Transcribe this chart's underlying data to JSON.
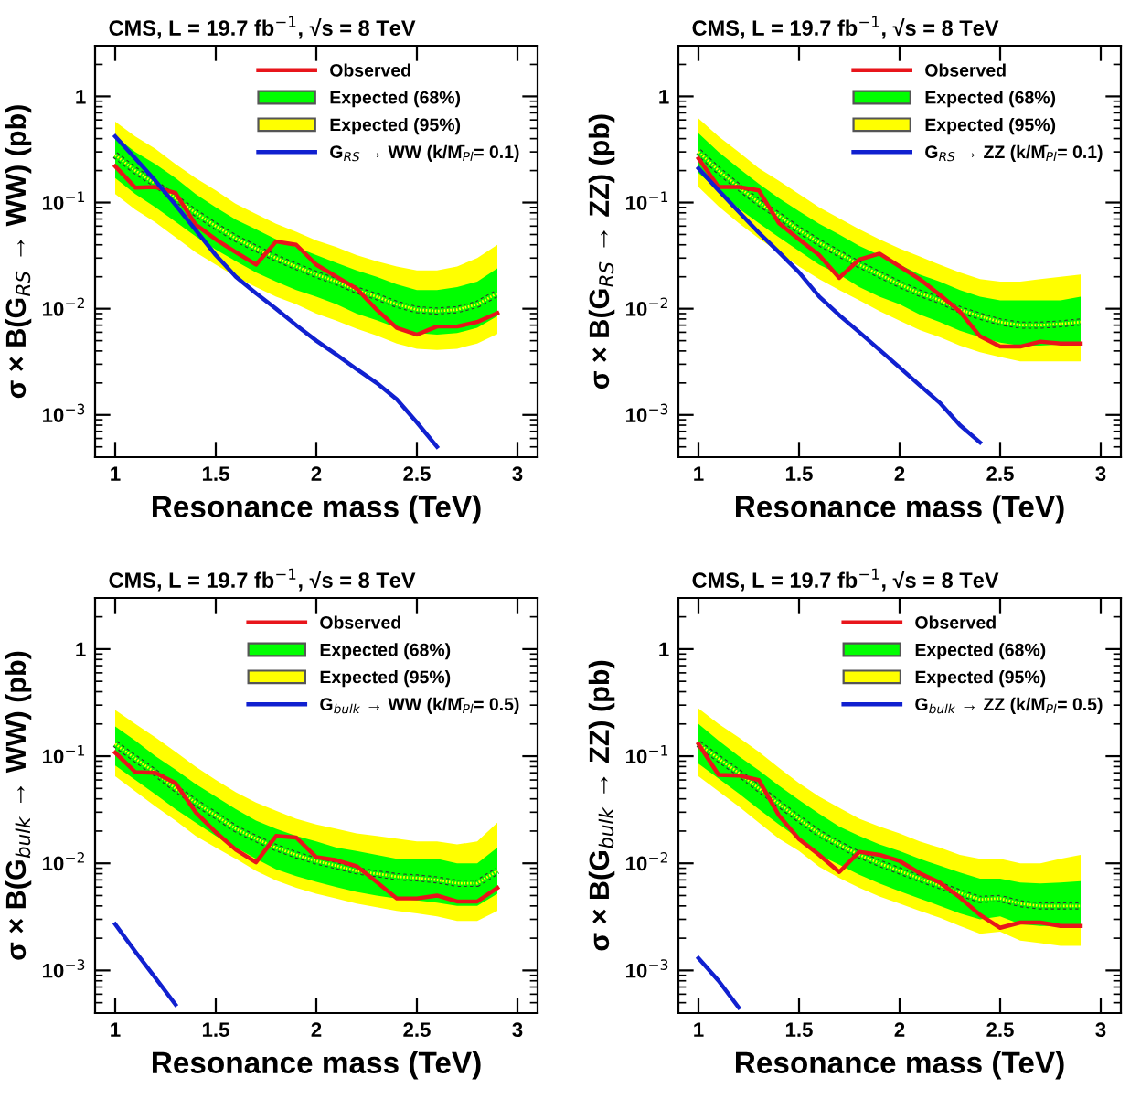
{
  "chart_data": [
    {
      "type": "line",
      "title": "CMS, L = 19.7 fb$^{−1}$, √s = 8 TeV",
      "xlabel": "Resonance mass (TeV)",
      "ylabel": "σ × B(G$_{RS}$ → WW) (pb)",
      "log": "y",
      "legend": "top right",
      "xlim": [
        0.9,
        3.1
      ],
      "xticks": [
        1,
        1.5,
        2,
        2.5,
        3
      ],
      "ylim": [
        0.0004,
        3
      ],
      "yticks": [
        {
          "value": 0.001,
          "label": "10$^{−3}$"
        },
        {
          "value": 0.01,
          "label": "10$^{−2}$"
        },
        {
          "value": 0.1,
          "label": "10$^{−1}$"
        },
        1
      ],
      "x": [
        1.0,
        1.1,
        1.2,
        1.3,
        1.4,
        1.5,
        1.6,
        1.7,
        1.8,
        1.9,
        2.0,
        2.1,
        2.2,
        2.3,
        2.4,
        2.5,
        2.6,
        2.7,
        2.8,
        2.9
      ],
      "series": [
        {
          "name": "Observed",
          "color": "#e8151b",
          "line_style": "solid",
          "values": [
            0.22,
            0.138,
            0.14,
            0.123,
            0.062,
            0.045,
            0.034,
            0.026,
            0.043,
            0.04,
            0.026,
            0.02,
            0.0155,
            0.0098,
            0.0066,
            0.0057,
            0.0068,
            0.0068,
            0.0075,
            0.0091
          ]
        },
        {
          "name": "Expected (68%)",
          "color": "#00ff00",
          "line_style": "dotted",
          "values": [
            0.28,
            0.2,
            0.15,
            0.11,
            0.08,
            0.06,
            0.046,
            0.037,
            0.03,
            0.025,
            0.021,
            0.018,
            0.015,
            0.013,
            0.011,
            0.0098,
            0.0095,
            0.0098,
            0.011,
            0.014
          ],
          "lower": [
            0.17,
            0.12,
            0.09,
            0.066,
            0.048,
            0.036,
            0.028,
            0.022,
            0.018,
            0.015,
            0.013,
            0.011,
            0.009,
            0.0078,
            0.0066,
            0.0059,
            0.0057,
            0.0059,
            0.0066,
            0.0085
          ],
          "upper": [
            0.42,
            0.3,
            0.23,
            0.17,
            0.12,
            0.09,
            0.069,
            0.056,
            0.045,
            0.038,
            0.032,
            0.027,
            0.023,
            0.02,
            0.017,
            0.015,
            0.015,
            0.016,
            0.018,
            0.024
          ]
        },
        {
          "name": "Expected (95%)",
          "color": "#ffff00",
          "line_style": "dotted",
          "values": [
            0.28,
            0.2,
            0.15,
            0.11,
            0.08,
            0.06,
            0.046,
            0.037,
            0.03,
            0.025,
            0.021,
            0.018,
            0.015,
            0.013,
            0.011,
            0.0098,
            0.0095,
            0.0098,
            0.011,
            0.014
          ],
          "lower": [
            0.12,
            0.086,
            0.065,
            0.047,
            0.034,
            0.026,
            0.02,
            0.016,
            0.013,
            0.011,
            0.009,
            0.0077,
            0.0065,
            0.0056,
            0.0047,
            0.0042,
            0.0041,
            0.0042,
            0.0047,
            0.0058
          ],
          "upper": [
            0.58,
            0.42,
            0.32,
            0.23,
            0.17,
            0.13,
            0.097,
            0.078,
            0.063,
            0.053,
            0.044,
            0.038,
            0.032,
            0.028,
            0.025,
            0.023,
            0.023,
            0.025,
            0.03,
            0.04
          ]
        },
        {
          "name": "G$_{RS}$ → WW (k/M̄$_{Pl}$= 0.1)",
          "color": "#1020d0",
          "line_style": "solid",
          "x": [
            1.0,
            1.1,
            1.2,
            1.3,
            1.4,
            1.5,
            1.6,
            1.7,
            1.8,
            1.9,
            2.0,
            2.1,
            2.2,
            2.3,
            2.4,
            2.5,
            2.6
          ],
          "values": [
            0.42,
            0.26,
            0.16,
            0.095,
            0.055,
            0.032,
            0.02,
            0.014,
            0.01,
            0.007,
            0.005,
            0.0037,
            0.0027,
            0.002,
            0.0014,
            0.00085,
            0.0005
          ]
        }
      ]
    },
    {
      "type": "line",
      "title": "CMS, L = 19.7 fb$^{−1}$, √s = 8 TeV",
      "xlabel": "Resonance mass (TeV)",
      "ylabel": "σ × B(G$_{RS}$ → ZZ) (pb)",
      "log": "y",
      "legend": "top right",
      "xlim": [
        0.9,
        3.1
      ],
      "xticks": [
        1,
        1.5,
        2,
        2.5,
        3
      ],
      "ylim": [
        0.0004,
        3
      ],
      "yticks": [
        {
          "value": 0.001,
          "label": "10$^{−3}$"
        },
        {
          "value": 0.01,
          "label": "10$^{−2}$"
        },
        {
          "value": 0.1,
          "label": "10$^{−1}$"
        },
        1
      ],
      "x": [
        1.0,
        1.1,
        1.2,
        1.3,
        1.4,
        1.5,
        1.6,
        1.7,
        1.8,
        1.9,
        2.0,
        2.1,
        2.2,
        2.3,
        2.4,
        2.5,
        2.6,
        2.7,
        2.8,
        2.9
      ],
      "series": [
        {
          "name": "Observed",
          "color": "#e8151b",
          "line_style": "solid",
          "values": [
            0.26,
            0.14,
            0.14,
            0.13,
            0.064,
            0.045,
            0.032,
            0.0195,
            0.029,
            0.033,
            0.025,
            0.019,
            0.0135,
            0.0094,
            0.0055,
            0.0044,
            0.0044,
            0.0049,
            0.0047,
            0.0047
          ]
        },
        {
          "name": "Expected (68%)",
          "color": "#00ff00",
          "line_style": "dotted",
          "values": [
            0.3,
            0.2,
            0.14,
            0.1,
            0.075,
            0.055,
            0.042,
            0.033,
            0.026,
            0.021,
            0.017,
            0.014,
            0.012,
            0.0098,
            0.0085,
            0.0075,
            0.007,
            0.007,
            0.0072,
            0.0075
          ],
          "lower": [
            0.19,
            0.13,
            0.088,
            0.064,
            0.047,
            0.035,
            0.026,
            0.021,
            0.016,
            0.013,
            0.011,
            0.0088,
            0.0075,
            0.0062,
            0.0054,
            0.0048,
            0.0045,
            0.0045,
            0.0046,
            0.0048
          ],
          "upper": [
            0.45,
            0.3,
            0.21,
            0.15,
            0.11,
            0.083,
            0.063,
            0.05,
            0.039,
            0.032,
            0.026,
            0.021,
            0.018,
            0.015,
            0.013,
            0.012,
            0.012,
            0.012,
            0.012,
            0.013
          ]
        },
        {
          "name": "Expected (95%)",
          "color": "#ffff00",
          "line_style": "dotted",
          "values": [
            0.3,
            0.2,
            0.14,
            0.1,
            0.075,
            0.055,
            0.042,
            0.033,
            0.026,
            0.021,
            0.017,
            0.014,
            0.012,
            0.0098,
            0.0085,
            0.0075,
            0.007,
            0.007,
            0.0072,
            0.0075
          ],
          "lower": [
            0.14,
            0.092,
            0.064,
            0.046,
            0.034,
            0.025,
            0.019,
            0.015,
            0.012,
            0.0095,
            0.0077,
            0.0063,
            0.0054,
            0.0045,
            0.0039,
            0.0035,
            0.0032,
            0.0032,
            0.0032,
            0.0032
          ],
          "upper": [
            0.62,
            0.42,
            0.3,
            0.21,
            0.16,
            0.12,
            0.09,
            0.071,
            0.056,
            0.045,
            0.037,
            0.031,
            0.026,
            0.022,
            0.019,
            0.018,
            0.018,
            0.019,
            0.02,
            0.021
          ]
        },
        {
          "name": "G$_{RS}$ → ZZ (k/M̄$_{Pl}$= 0.1)",
          "color": "#1020d0",
          "line_style": "solid",
          "x": [
            1.0,
            1.1,
            1.2,
            1.3,
            1.4,
            1.5,
            1.6,
            1.7,
            1.8,
            1.9,
            2.0,
            2.1,
            2.2,
            2.3,
            2.4
          ],
          "values": [
            0.21,
            0.13,
            0.082,
            0.052,
            0.034,
            0.022,
            0.013,
            0.0087,
            0.006,
            0.0041,
            0.0028,
            0.0019,
            0.0013,
            0.0008,
            0.00055
          ]
        }
      ]
    },
    {
      "type": "line",
      "title": "CMS, L = 19.7 fb$^{−1}$, √s = 8 TeV",
      "xlabel": "Resonance mass (TeV)",
      "ylabel": "σ × B(G$_{bulk}$ → WW) (pb)",
      "log": "y",
      "legend": "top right",
      "xlim": [
        0.9,
        3.1
      ],
      "xticks": [
        1,
        1.5,
        2,
        2.5,
        3
      ],
      "ylim": [
        0.0004,
        3
      ],
      "yticks": [
        {
          "value": 0.001,
          "label": "10$^{−3}$"
        },
        {
          "value": 0.01,
          "label": "10$^{−2}$"
        },
        {
          "value": 0.1,
          "label": "10$^{−1}$"
        },
        1
      ],
      "x": [
        1.0,
        1.1,
        1.2,
        1.3,
        1.4,
        1.5,
        1.6,
        1.7,
        1.8,
        1.9,
        2.0,
        2.1,
        2.2,
        2.3,
        2.4,
        2.5,
        2.6,
        2.7,
        2.8,
        2.9
      ],
      "series": [
        {
          "name": "Observed",
          "color": "#e8151b",
          "line_style": "solid",
          "values": [
            0.108,
            0.071,
            0.07,
            0.056,
            0.03,
            0.0195,
            0.0134,
            0.0102,
            0.018,
            0.0174,
            0.0114,
            0.0107,
            0.0094,
            0.0067,
            0.0047,
            0.0047,
            0.005,
            0.0044,
            0.0044,
            0.0059
          ]
        },
        {
          "name": "Expected (68%)",
          "color": "#00ff00",
          "line_style": "dotted",
          "values": [
            0.13,
            0.095,
            0.07,
            0.05,
            0.037,
            0.028,
            0.021,
            0.017,
            0.014,
            0.012,
            0.0105,
            0.0095,
            0.0085,
            0.008,
            0.0075,
            0.0073,
            0.007,
            0.0065,
            0.0065,
            0.0085
          ],
          "lower": [
            0.082,
            0.06,
            0.044,
            0.032,
            0.024,
            0.018,
            0.014,
            0.011,
            0.0088,
            0.0076,
            0.0067,
            0.006,
            0.0054,
            0.005,
            0.0047,
            0.0045,
            0.0043,
            0.004,
            0.004,
            0.0052
          ],
          "upper": [
            0.19,
            0.14,
            0.1,
            0.075,
            0.055,
            0.042,
            0.032,
            0.025,
            0.021,
            0.018,
            0.016,
            0.014,
            0.013,
            0.012,
            0.011,
            0.011,
            0.011,
            0.01,
            0.01,
            0.014
          ]
        },
        {
          "name": "Expected (95%)",
          "color": "#ffff00",
          "line_style": "dotted",
          "values": [
            0.13,
            0.095,
            0.07,
            0.05,
            0.037,
            0.028,
            0.021,
            0.017,
            0.014,
            0.012,
            0.0105,
            0.0095,
            0.0085,
            0.008,
            0.0075,
            0.0073,
            0.007,
            0.0065,
            0.0065,
            0.0085
          ],
          "lower": [
            0.065,
            0.047,
            0.034,
            0.025,
            0.018,
            0.014,
            0.011,
            0.0085,
            0.0069,
            0.0059,
            0.0052,
            0.0047,
            0.0042,
            0.0039,
            0.0036,
            0.0034,
            0.0032,
            0.0029,
            0.0029,
            0.0036
          ],
          "upper": [
            0.27,
            0.2,
            0.15,
            0.11,
            0.08,
            0.06,
            0.046,
            0.037,
            0.031,
            0.026,
            0.023,
            0.021,
            0.019,
            0.018,
            0.017,
            0.016,
            0.016,
            0.015,
            0.016,
            0.024
          ]
        },
        {
          "name": "G$_{bulk}$ → WW (k/M̄$_{Pl}$= 0.5)",
          "color": "#1020d0",
          "line_style": "solid",
          "x": [
            1.0,
            1.1,
            1.2,
            1.3
          ],
          "values": [
            0.0027,
            0.0015,
            0.00085,
            0.00048
          ]
        }
      ]
    },
    {
      "type": "line",
      "title": "CMS, L = 19.7 fb$^{−1}$, √s = 8 TeV",
      "xlabel": "Resonance mass (TeV)",
      "ylabel": "σ × B(G$_{bulk}$ → ZZ) (pb)",
      "log": "y",
      "legend": "top right",
      "xlim": [
        0.9,
        3.1
      ],
      "xticks": [
        1,
        1.5,
        2,
        2.5,
        3
      ],
      "ylim": [
        0.0004,
        3
      ],
      "yticks": [
        {
          "value": 0.001,
          "label": "10$^{−3}$"
        },
        {
          "value": 0.01,
          "label": "10$^{−2}$"
        },
        {
          "value": 0.1,
          "label": "10$^{−1}$"
        },
        1
      ],
      "x": [
        1.0,
        1.1,
        1.2,
        1.3,
        1.4,
        1.5,
        1.6,
        1.7,
        1.8,
        1.9,
        2.0,
        2.1,
        2.2,
        2.3,
        2.4,
        2.5,
        2.6,
        2.7,
        2.8,
        2.9
      ],
      "series": [
        {
          "name": "Observed",
          "color": "#e8151b",
          "line_style": "solid",
          "values": [
            0.13,
            0.067,
            0.066,
            0.06,
            0.028,
            0.0168,
            0.012,
            0.0083,
            0.0128,
            0.012,
            0.0105,
            0.0081,
            0.0066,
            0.0048,
            0.0033,
            0.0025,
            0.0028,
            0.0028,
            0.0026,
            0.0026
          ]
        },
        {
          "name": "Expected (68%)",
          "color": "#00ff00",
          "line_style": "dotted",
          "values": [
            0.13,
            0.095,
            0.07,
            0.05,
            0.036,
            0.026,
            0.019,
            0.015,
            0.012,
            0.01,
            0.0085,
            0.0072,
            0.0062,
            0.0053,
            0.0046,
            0.0047,
            0.0042,
            0.004,
            0.004,
            0.004
          ],
          "lower": [
            0.085,
            0.062,
            0.045,
            0.032,
            0.023,
            0.017,
            0.012,
            0.0097,
            0.0078,
            0.0065,
            0.0055,
            0.0047,
            0.004,
            0.0034,
            0.003,
            0.0032,
            0.0027,
            0.0026,
            0.0026,
            0.0026
          ],
          "upper": [
            0.2,
            0.14,
            0.1,
            0.074,
            0.053,
            0.039,
            0.029,
            0.022,
            0.018,
            0.015,
            0.013,
            0.011,
            0.0095,
            0.0082,
            0.0072,
            0.0072,
            0.0066,
            0.0065,
            0.0066,
            0.0068
          ]
        },
        {
          "name": "Expected (95%)",
          "color": "#ffff00",
          "line_style": "dotted",
          "values": [
            0.13,
            0.095,
            0.07,
            0.05,
            0.036,
            0.026,
            0.019,
            0.015,
            0.012,
            0.01,
            0.0085,
            0.0072,
            0.0062,
            0.0053,
            0.0046,
            0.0047,
            0.0042,
            0.004,
            0.004,
            0.004
          ],
          "lower": [
            0.065,
            0.047,
            0.034,
            0.024,
            0.017,
            0.013,
            0.0093,
            0.0073,
            0.0059,
            0.0049,
            0.0042,
            0.0036,
            0.0031,
            0.0026,
            0.0022,
            0.0023,
            0.0019,
            0.0018,
            0.0017,
            0.0017
          ],
          "upper": [
            0.28,
            0.2,
            0.15,
            0.11,
            0.078,
            0.056,
            0.042,
            0.033,
            0.026,
            0.022,
            0.019,
            0.016,
            0.014,
            0.012,
            0.011,
            0.011,
            0.01,
            0.01,
            0.011,
            0.012
          ]
        },
        {
          "name": "G$_{bulk}$ → ZZ (k/M̄$_{Pl}$= 0.5)",
          "color": "#1020d0",
          "line_style": "solid",
          "x": [
            1.0,
            1.1,
            1.2
          ],
          "values": [
            0.0013,
            0.0008,
            0.00045
          ]
        }
      ]
    }
  ]
}
